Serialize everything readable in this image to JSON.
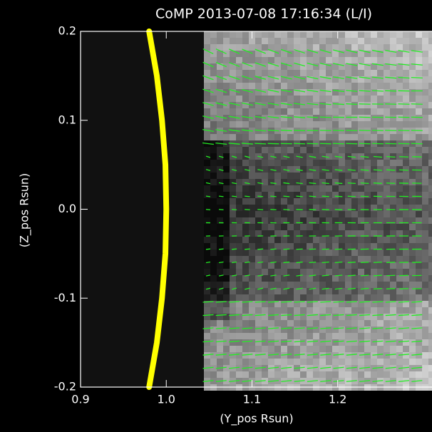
{
  "chart_data": {
    "type": "image",
    "title": "CoMP 2013-07-08 17:16:34 (L/I)",
    "x_label": "(Y_pos Rsun)",
    "y_label": "(Z_pos Rsun)",
    "xlim": [
      0.9,
      1.31
    ],
    "ylim": [
      -0.2,
      0.2
    ],
    "xticks": [
      0.9,
      {
        "value": 1.0,
        "label": "1.0"
      },
      1.1,
      1.2
    ],
    "yticks": [
      -0.2,
      -0.1,
      {
        "value": 0,
        "label": "0.0"
      },
      0.1,
      0.2
    ],
    "series": [
      {
        "color": "#ffff00",
        "x": [
          0.98,
          0.989,
          0.995,
          0.999,
          1.0,
          0.999,
          0.995,
          0.989,
          0.98
        ],
        "values": [
          -0.2,
          -0.15,
          -0.1,
          -0.05,
          0,
          0.05,
          0.1,
          0.15,
          0.2
        ]
      }
    ]
  }
}
